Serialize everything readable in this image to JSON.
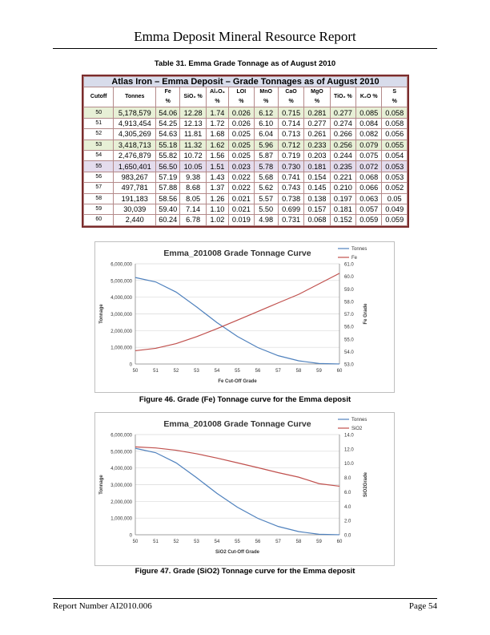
{
  "header": {
    "title": "Emma Deposit Mineral Resource Report"
  },
  "table_caption": "Table 31. Emma Grade Tonnage as of August 2010",
  "table": {
    "title": "Atlas Iron – Emma Deposit – Grade Tonnages as of August 2010",
    "headers": [
      {
        "l1": "Cutoff",
        "l2": ""
      },
      {
        "l1": "Tonnes",
        "l2": ""
      },
      {
        "l1": "Fe",
        "l2": "%"
      },
      {
        "l1": "SiO₂ %",
        "l2": ""
      },
      {
        "l1": "Al₂O₃",
        "l2": "%"
      },
      {
        "l1": "LOI",
        "l2": "%"
      },
      {
        "l1": "MnO",
        "l2": "%"
      },
      {
        "l1": "CaO",
        "l2": "%"
      },
      {
        "l1": "MgO",
        "l2": "%"
      },
      {
        "l1": "TiO₂ %",
        "l2": ""
      },
      {
        "l1": "K₂O %",
        "l2": ""
      },
      {
        "l1": "S",
        "l2": "%"
      }
    ],
    "rows": [
      [
        "50",
        "5,178,579",
        "54.06",
        "12.28",
        "1.74",
        "0.026",
        "6.12",
        "0.715",
        "0.281",
        "0.277",
        "0.085",
        "0.058"
      ],
      [
        "51",
        "4,913,454",
        "54.25",
        "12.13",
        "1.72",
        "0.026",
        "6.10",
        "0.714",
        "0.277",
        "0.274",
        "0.084",
        "0.058"
      ],
      [
        "52",
        "4,305,269",
        "54.63",
        "11.81",
        "1.68",
        "0.025",
        "6.04",
        "0.713",
        "0.261",
        "0.266",
        "0.082",
        "0.056"
      ],
      [
        "53",
        "3,418,713",
        "55.18",
        "11.32",
        "1.62",
        "0.025",
        "5.96",
        "0.712",
        "0.233",
        "0.256",
        "0.079",
        "0.055"
      ],
      [
        "54",
        "2,476,879",
        "55.82",
        "10.72",
        "1.56",
        "0.025",
        "5.87",
        "0.719",
        "0.203",
        "0.244",
        "0.075",
        "0.054"
      ],
      [
        "55",
        "1,650,401",
        "56.50",
        "10.05",
        "1.51",
        "0.023",
        "5.78",
        "0.730",
        "0.181",
        "0.235",
        "0.072",
        "0.053"
      ],
      [
        "56",
        "983,267",
        "57.19",
        "9.38",
        "1.43",
        "0.022",
        "5.68",
        "0.741",
        "0.154",
        "0.221",
        "0.068",
        "0.053"
      ],
      [
        "57",
        "497,781",
        "57.88",
        "8.68",
        "1.37",
        "0.022",
        "5.62",
        "0.743",
        "0.145",
        "0.210",
        "0.066",
        "0.052"
      ],
      [
        "58",
        "191,183",
        "58.56",
        "8.05",
        "1.26",
        "0.021",
        "5.57",
        "0.738",
        "0.138",
        "0.197",
        "0.063",
        "0.05"
      ],
      [
        "59",
        "30,039",
        "59.40",
        "7.14",
        "1.10",
        "0.021",
        "5.50",
        "0.699",
        "0.157",
        "0.181",
        "0.057",
        "0.049"
      ],
      [
        "60",
        "2,440",
        "60.24",
        "6.78",
        "1.02",
        "0.019",
        "4.98",
        "0.731",
        "0.068",
        "0.152",
        "0.059",
        "0.059"
      ]
    ],
    "highlight_colors": {
      "green": "#e7f0d6",
      "purple": "#e4dced"
    }
  },
  "chart_data": [
    {
      "type": "line",
      "title": "Emma_201008 Grade Tonnage Curve",
      "xlabel": "Fe Cut-Off Grade",
      "ylabel": "Tonnage",
      "y2label": "Fe Grade",
      "x": [
        50,
        51,
        52,
        53,
        54,
        55,
        56,
        57,
        58,
        59,
        60
      ],
      "xlim": [
        50,
        60
      ],
      "ylim": [
        0,
        6000000
      ],
      "y2lim": [
        53,
        61
      ],
      "y_ticks": [
        "0",
        "1,000,000",
        "2,000,000",
        "3,000,000",
        "4,000,000",
        "5,000,000",
        "6,000,000"
      ],
      "y2_ticks": [
        "53.0",
        "54.0",
        "55.0",
        "56.0",
        "57.0",
        "58.0",
        "59.0",
        "60.0",
        "61.0"
      ],
      "legend_position": "top-right",
      "series": [
        {
          "name": "Tonnes",
          "axis": "left",
          "color": "#4f81bd",
          "values": [
            5178579,
            4913454,
            4305269,
            3418713,
            2476879,
            1650401,
            983267,
            497781,
            191183,
            30039,
            2440
          ]
        },
        {
          "name": "Fe",
          "axis": "right",
          "color": "#c0504d",
          "values": [
            54.06,
            54.25,
            54.63,
            55.18,
            55.82,
            56.5,
            57.19,
            57.88,
            58.56,
            59.4,
            60.24
          ]
        }
      ]
    },
    {
      "type": "line",
      "title": "Emma_201008 Grade Tonnage Curve",
      "xlabel": "SiO2 Cut-Off Grade",
      "ylabel": "Tonnage",
      "y2label": "SiO2Grade",
      "x": [
        50,
        51,
        52,
        53,
        54,
        55,
        56,
        57,
        58,
        59,
        60
      ],
      "xlim": [
        50,
        60
      ],
      "ylim": [
        0,
        6000000
      ],
      "y2lim": [
        0,
        14
      ],
      "y_ticks": [
        "0",
        "1,000,000",
        "2,000,000",
        "3,000,000",
        "4,000,000",
        "5,000,000",
        "6,000,000"
      ],
      "y2_ticks": [
        "0.0",
        "2.0",
        "4.0",
        "6.0",
        "8.0",
        "10.0",
        "12.0",
        "14.0"
      ],
      "legend_position": "top-right",
      "series": [
        {
          "name": "Tonnes",
          "axis": "left",
          "color": "#4f81bd",
          "values": [
            5178579,
            4913454,
            4305269,
            3418713,
            2476879,
            1650401,
            983267,
            497781,
            191183,
            30039,
            2440
          ]
        },
        {
          "name": "SiO2",
          "axis": "right",
          "color": "#c0504d",
          "values": [
            12.28,
            12.13,
            11.81,
            11.32,
            10.72,
            10.05,
            9.38,
            8.68,
            8.05,
            7.14,
            6.78
          ]
        }
      ]
    }
  ],
  "figure_captions": [
    "Figure 46. Grade (Fe) Tonnage curve for the Emma deposit",
    "Figure 47. Grade (SiO2) Tonnage curve for the Emma deposit"
  ],
  "footer": {
    "left": "Report Number AI2010.006",
    "right": "Page 54"
  }
}
